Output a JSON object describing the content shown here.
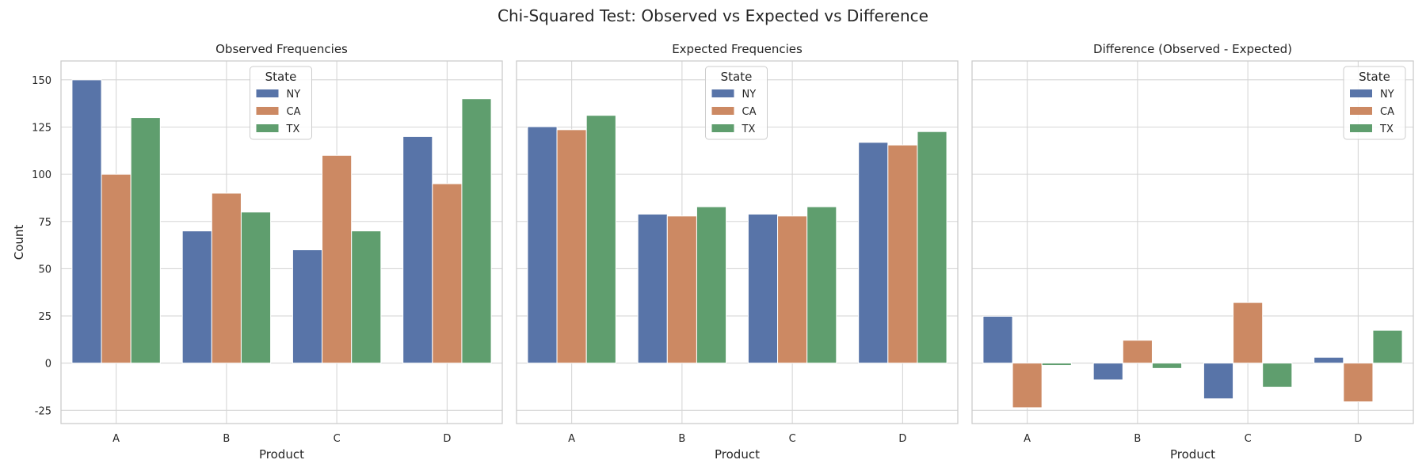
{
  "figure_title": "Chi-Squared Test: Observed vs Expected vs Difference",
  "chart_data": [
    {
      "type": "bar",
      "title": "Observed Frequencies",
      "xlabel": "Product",
      "ylabel": "Count",
      "categories": [
        "A",
        "B",
        "C",
        "D"
      ],
      "ylim": [
        -32,
        160
      ],
      "yticks": [
        -25,
        0,
        25,
        50,
        75,
        100,
        125,
        150
      ],
      "legend": {
        "title": "State",
        "placement": "top-center"
      },
      "series": [
        {
          "name": "NY",
          "color": "#5874a8",
          "values": [
            150,
            70,
            60,
            120
          ]
        },
        {
          "name": "CA",
          "color": "#cc8963",
          "values": [
            100,
            90,
            110,
            95
          ]
        },
        {
          "name": "TX",
          "color": "#5f9e6e",
          "values": [
            130,
            80,
            70,
            140
          ]
        }
      ]
    },
    {
      "type": "bar",
      "title": "Expected Frequencies",
      "xlabel": "Product",
      "ylabel": "",
      "categories": [
        "A",
        "B",
        "C",
        "D"
      ],
      "ylim": [
        -32,
        160
      ],
      "yticks": [
        -25,
        0,
        25,
        50,
        75,
        100,
        125,
        150
      ],
      "legend": {
        "title": "State",
        "placement": "top-center"
      },
      "series": [
        {
          "name": "NY",
          "color": "#5874a8",
          "values": [
            125.2,
            78.9,
            78.9,
            116.9
          ]
        },
        {
          "name": "CA",
          "color": "#cc8963",
          "values": [
            123.6,
            77.9,
            77.9,
            115.5
          ]
        },
        {
          "name": "TX",
          "color": "#5f9e6e",
          "values": [
            131.2,
            82.8,
            82.8,
            122.6
          ]
        }
      ]
    },
    {
      "type": "bar",
      "title": "Difference (Observed - Expected)",
      "xlabel": "Product",
      "ylabel": "",
      "categories": [
        "A",
        "B",
        "C",
        "D"
      ],
      "ylim": [
        -32,
        160
      ],
      "yticks": [
        -25,
        0,
        25,
        50,
        75,
        100,
        125,
        150
      ],
      "legend": {
        "title": "State",
        "placement": "top-right"
      },
      "series": [
        {
          "name": "NY",
          "color": "#5874a8",
          "values": [
            24.8,
            -8.9,
            -18.9,
            3.1
          ]
        },
        {
          "name": "CA",
          "color": "#cc8963",
          "values": [
            -23.6,
            12.1,
            32.1,
            -20.5
          ]
        },
        {
          "name": "TX",
          "color": "#5f9e6e",
          "values": [
            -1.2,
            -2.8,
            -12.8,
            17.4
          ]
        }
      ]
    }
  ]
}
